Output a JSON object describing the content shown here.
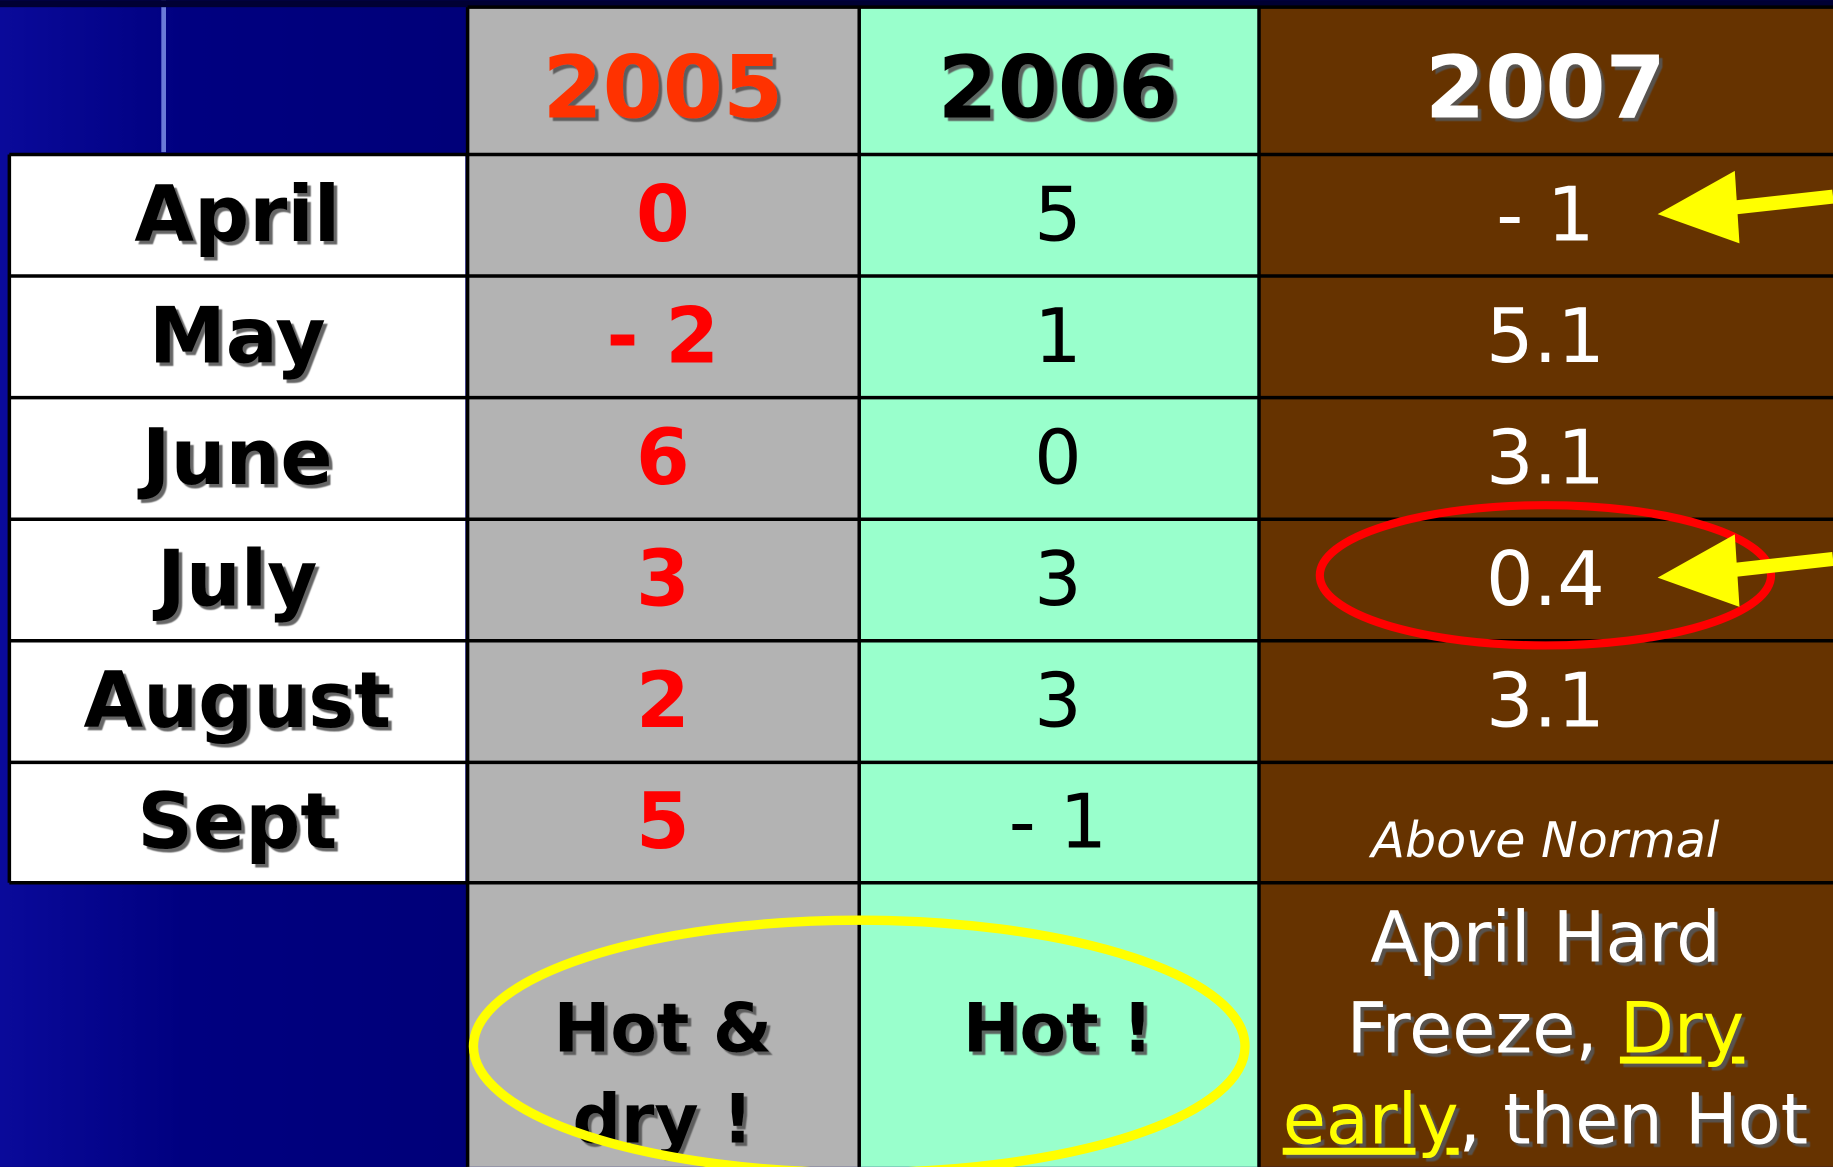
{
  "table": {
    "header": [
      "2005",
      "2006",
      "2007"
    ],
    "rows": [
      [
        "April",
        "0",
        "5",
        "- 1"
      ],
      [
        "May",
        "- 2",
        "1",
        "5.1"
      ],
      [
        "June",
        "6",
        "0",
        "3.1"
      ],
      [
        "July",
        "3",
        "3",
        "0.4"
      ],
      [
        "August",
        "2",
        "3",
        "3.1"
      ],
      [
        "Sept",
        "5",
        "- 1",
        "Above Normal"
      ]
    ],
    "notes": [
      [
        [
          "Hot &"
        ],
        [
          "dry !"
        ]
      ],
      [
        [
          "Hot !"
        ]
      ],
      [
        [
          "April Hard"
        ],
        [
          "Freeze, ",
          "Dry"
        ],
        [
          "early",
          ", then Hot"
        ]
      ]
    ]
  }
}
